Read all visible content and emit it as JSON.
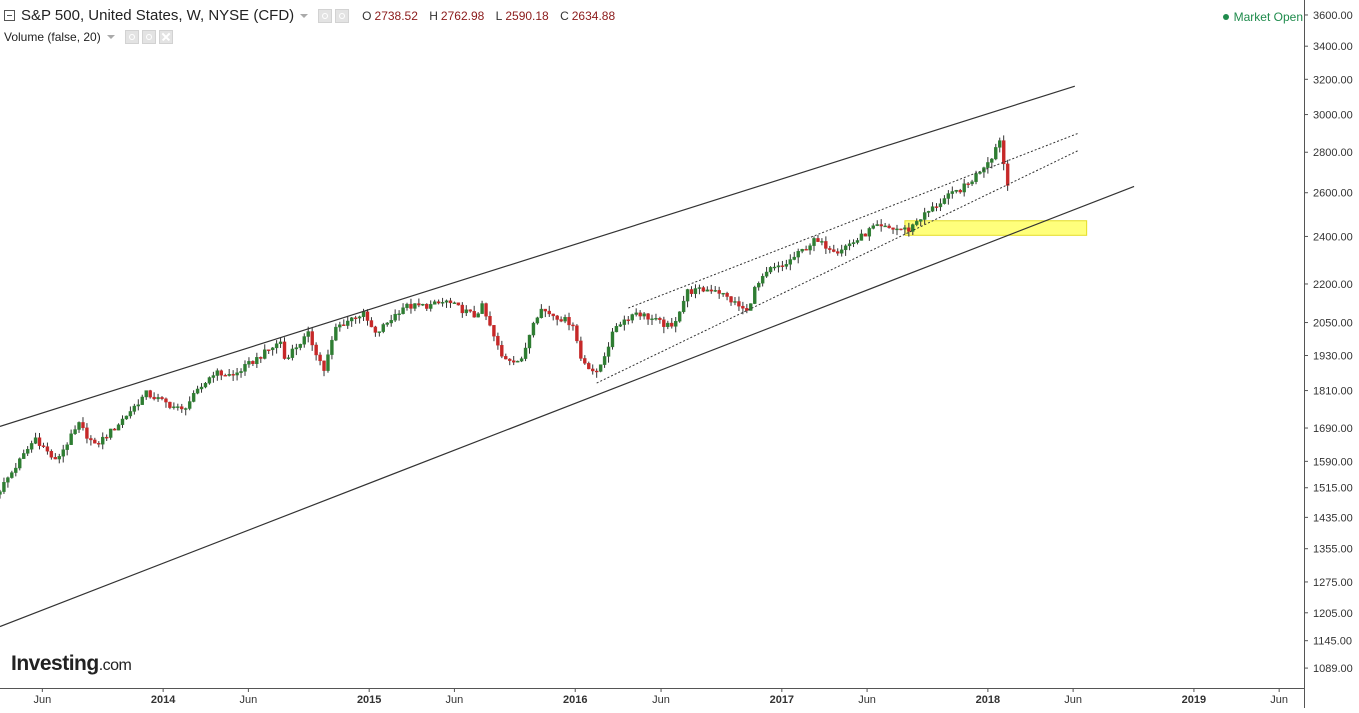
{
  "header": {
    "symbol_title": "S&P 500, United States, W, NYSE (CFD)",
    "ohlc": {
      "o_label": "O",
      "o": "2738.52",
      "h_label": "H",
      "h": "2762.98",
      "l_label": "L",
      "l": "2590.18",
      "c_label": "C",
      "c": "2634.88"
    },
    "indicator": "Volume (false, 20)"
  },
  "market_status": "Market Open",
  "logo": {
    "main": "Investing",
    "suffix": ".com"
  },
  "colors": {
    "up": "#2e7d32",
    "down": "#c62828",
    "wick": "#333333",
    "trendline": "#333333",
    "highlight": "#ffff66",
    "status": "#1f8b4c"
  },
  "chart_data": {
    "type": "candlestick",
    "y_scale": "log",
    "ylim": [
      1050,
      3700
    ],
    "xlim": [
      "2013-03-18",
      "2019-07-15"
    ],
    "y_ticks": [
      "1089.00",
      "1145.00",
      "1205.00",
      "1275.00",
      "1355.00",
      "1435.00",
      "1515.00",
      "1590.00",
      "1690.00",
      "1810.00",
      "1930.00",
      "2050.00",
      "2200.00",
      "2400.00",
      "2600.00",
      "2800.00",
      "3000.00",
      "3200.00",
      "3400.00",
      "3600.00"
    ],
    "x_ticks": [
      {
        "label": "Jun",
        "date": "2013-06-01",
        "bold": false
      },
      {
        "label": "2014",
        "date": "2014-01-01",
        "bold": true
      },
      {
        "label": "Jun",
        "date": "2014-06-01",
        "bold": false
      },
      {
        "label": "2015",
        "date": "2015-01-01",
        "bold": true
      },
      {
        "label": "Jun",
        "date": "2015-06-01",
        "bold": false
      },
      {
        "label": "2016",
        "date": "2016-01-01",
        "bold": true
      },
      {
        "label": "Jun",
        "date": "2016-06-01",
        "bold": false
      },
      {
        "label": "2017",
        "date": "2017-01-01",
        "bold": true
      },
      {
        "label": "Jun",
        "date": "2017-06-01",
        "bold": false
      },
      {
        "label": "2018",
        "date": "2018-01-01",
        "bold": true
      },
      {
        "label": "Jun",
        "date": "2018-06-01",
        "bold": false
      },
      {
        "label": "2019",
        "date": "2019-01-01",
        "bold": true
      },
      {
        "label": "Jun",
        "date": "2019-06-01",
        "bold": false
      }
    ],
    "close_anchors": [
      [
        "2013-03-18",
        1510
      ],
      [
        "2013-05-20",
        1660
      ],
      [
        "2013-06-24",
        1590
      ],
      [
        "2013-08-05",
        1700
      ],
      [
        "2013-09-02",
        1635
      ],
      [
        "2013-10-07",
        1690
      ],
      [
        "2013-12-02",
        1800
      ],
      [
        "2014-02-03",
        1745
      ],
      [
        "2014-03-31",
        1870
      ],
      [
        "2014-05-05",
        1860
      ],
      [
        "2014-07-28",
        1980
      ],
      [
        "2014-08-04",
        1920
      ],
      [
        "2014-09-15",
        2005
      ],
      [
        "2014-10-13",
        1880
      ],
      [
        "2014-11-03",
        2030
      ],
      [
        "2014-12-08",
        2075
      ],
      [
        "2014-12-22",
        2080
      ],
      [
        "2015-01-12",
        2005
      ],
      [
        "2015-03-02",
        2110
      ],
      [
        "2015-04-20",
        2115
      ],
      [
        "2015-05-18",
        2130
      ],
      [
        "2015-07-06",
        2075
      ],
      [
        "2015-07-20",
        2110
      ],
      [
        "2015-08-24",
        1925
      ],
      [
        "2015-09-28",
        1910
      ],
      [
        "2015-10-19",
        2060
      ],
      [
        "2015-11-02",
        2100
      ],
      [
        "2015-12-28",
        2045
      ],
      [
        "2016-01-11",
        1920
      ],
      [
        "2016-02-08",
        1865
      ],
      [
        "2016-03-14",
        2040
      ],
      [
        "2016-04-18",
        2090
      ],
      [
        "2016-06-20",
        2030
      ],
      [
        "2016-07-18",
        2170
      ],
      [
        "2016-09-05",
        2180
      ],
      [
        "2016-10-31",
        2090
      ],
      [
        "2016-11-14",
        2180
      ],
      [
        "2016-12-12",
        2260
      ],
      [
        "2017-01-02",
        2270
      ],
      [
        "2017-02-27",
        2380
      ],
      [
        "2017-04-10",
        2340
      ],
      [
        "2017-05-15",
        2385
      ],
      [
        "2017-06-12",
        2440
      ],
      [
        "2017-08-14",
        2430
      ],
      [
        "2017-08-28",
        2470
      ],
      [
        "2017-10-16",
        2570
      ],
      [
        "2017-11-27",
        2640
      ],
      [
        "2018-01-08",
        2780
      ],
      [
        "2018-01-22",
        2870
      ],
      [
        "2018-02-05",
        2620
      ]
    ],
    "support_zone": {
      "date_from": "2017-08-07",
      "date_to": "2018-06-25",
      "low": 2405,
      "high": 2470
    },
    "trendlines": [
      {
        "style": "solid",
        "from": [
          "2013-03-18",
          1695
        ],
        "to": [
          "2018-06-04",
          3160
        ]
      },
      {
        "style": "solid",
        "from": [
          "2013-03-18",
          1175
        ],
        "to": [
          "2018-09-17",
          2630
        ]
      },
      {
        "style": "dotted",
        "from": [
          "2016-04-04",
          2105
        ],
        "to": [
          "2018-06-11",
          2900
        ]
      },
      {
        "style": "dotted",
        "from": [
          "2016-02-08",
          1835
        ],
        "to": [
          "2018-06-11",
          2810
        ]
      }
    ]
  }
}
